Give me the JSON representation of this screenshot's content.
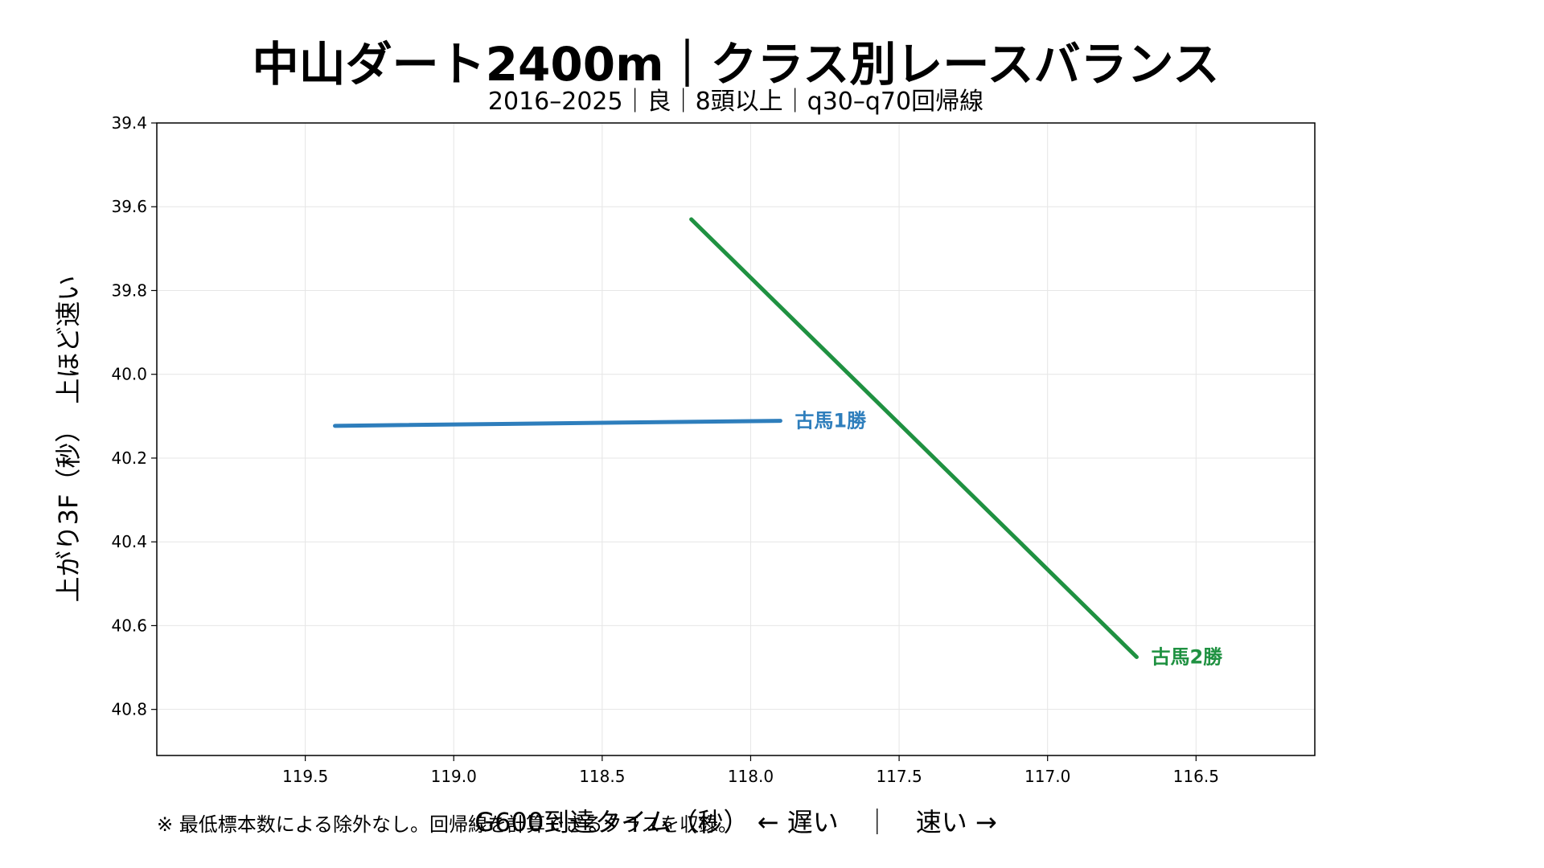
{
  "chart_data": {
    "type": "line",
    "title": "中山ダート2400m｜クラス別レースバランス",
    "subtitle": "2016–2025｜良｜8頭以上｜q30–q70回帰線",
    "xlabel": "G600到達タイム（秒） ← 遅い　｜　速い →",
    "ylabel": "上がり3F（秒）　上ほど速い",
    "note": "※ 最低標本数による除外なし。回帰線を計算できるクラスを収録。",
    "x_reversed": true,
    "y_reversed": true,
    "xlim": [
      120.0,
      116.1
    ],
    "ylim": [
      39.4,
      40.91
    ],
    "xticks": [
      119.5,
      119.0,
      118.5,
      118.0,
      117.5,
      117.0,
      116.5
    ],
    "xtick_labels": [
      "119.5",
      "119.0",
      "118.5",
      "118.0",
      "117.5",
      "117.0",
      "116.5"
    ],
    "yticks": [
      39.4,
      39.6,
      39.8,
      40.0,
      40.2,
      40.4,
      40.6,
      40.8
    ],
    "ytick_labels": [
      "39.4",
      "39.6",
      "39.8",
      "40.0",
      "40.2",
      "40.4",
      "40.6",
      "40.8"
    ],
    "grid": true,
    "series": [
      {
        "name": "古馬1勝",
        "color": "#2e7ebc",
        "x": [
          119.4,
          117.9
        ],
        "y": [
          40.123,
          40.111
        ]
      },
      {
        "name": "古馬2勝",
        "color": "#1f9141",
        "x": [
          118.2,
          116.7
        ],
        "y": [
          39.63,
          40.675
        ]
      }
    ]
  }
}
